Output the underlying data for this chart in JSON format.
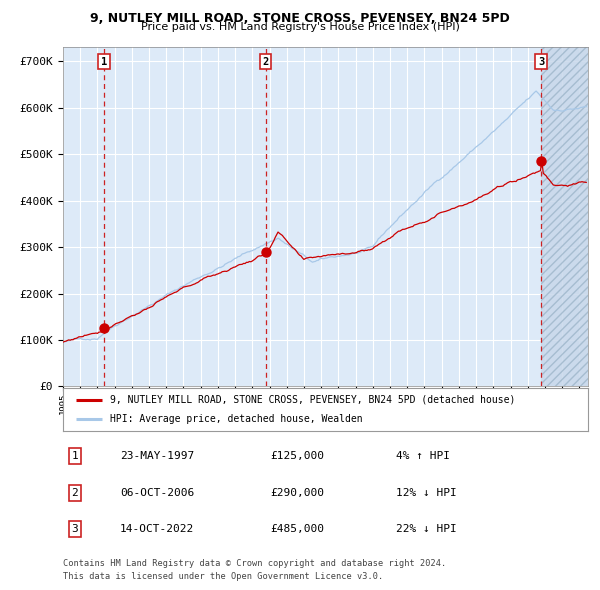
{
  "title1": "9, NUTLEY MILL ROAD, STONE CROSS, PEVENSEY, BN24 5PD",
  "title2": "Price paid vs. HM Land Registry's House Price Index (HPI)",
  "hpi_label": "HPI: Average price, detached house, Wealden",
  "property_label": "9, NUTLEY MILL ROAD, STONE CROSS, PEVENSEY, BN24 5PD (detached house)",
  "hpi_color": "#a8c8e8",
  "property_color": "#cc0000",
  "marker_color": "#cc0000",
  "bg_color": "#ddeaf8",
  "grid_color": "#ffffff",
  "vline_color": "#cc2222",
  "ylabel_ticks": [
    "£0",
    "£100K",
    "£200K",
    "£300K",
    "£400K",
    "£500K",
    "£600K",
    "£700K"
  ],
  "ytick_values": [
    0,
    100000,
    200000,
    300000,
    400000,
    500000,
    600000,
    700000
  ],
  "xmin": 1995.0,
  "xmax": 2025.5,
  "ymin": 0,
  "ymax": 730000,
  "sales": [
    {
      "label": "1",
      "date": "23-MAY-1997",
      "price": 125000,
      "year": 1997.38,
      "hpi_pct": "4%",
      "direction": "↑"
    },
    {
      "label": "2",
      "date": "06-OCT-2006",
      "price": 290000,
      "year": 2006.77,
      "hpi_pct": "12%",
      "direction": "↓"
    },
    {
      "label": "3",
      "date": "14-OCT-2022",
      "price": 485000,
      "year": 2022.78,
      "hpi_pct": "22%",
      "direction": "↓"
    }
  ],
  "footer1": "Contains HM Land Registry data © Crown copyright and database right 2024.",
  "footer2": "This data is licensed under the Open Government Licence v3.0."
}
